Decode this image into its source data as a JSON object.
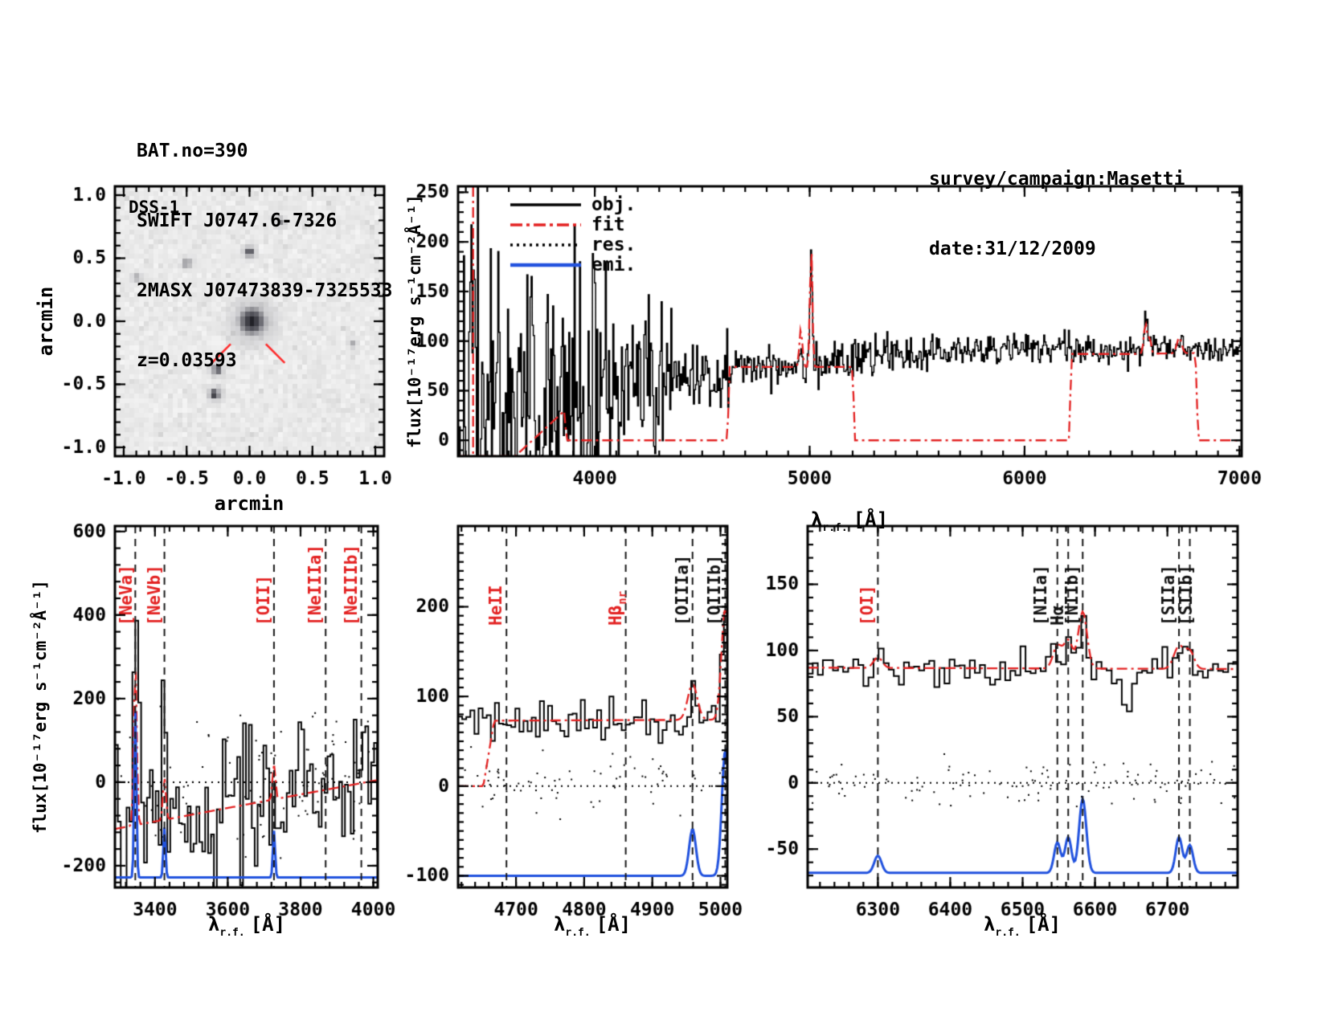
{
  "header_left": {
    "line1": "BAT.no=390",
    "line2": "SWIFT J0747.6-7326",
    "line3": "2MASX J07473839-7325533",
    "line4": "z=0.03593"
  },
  "header_right": {
    "line1": "survey/campaign:Masetti",
    "line2": "date:31/12/2009"
  },
  "labels": {
    "flux_axis": "flux[10⁻¹⁷erg s⁻¹cm⁻²Å⁻¹]",
    "arcmin": "arcmin",
    "wavelength_symbol": "λ",
    "wavelength_sub": "r.f.",
    "wavelength_unit": "[Å]",
    "dss_tag": "DSS-1"
  },
  "legend": {
    "items": [
      {
        "label": "obj.",
        "color": "#000000",
        "style": "solid"
      },
      {
        "label": "fit",
        "color": "#e32222",
        "style": "dashdot"
      },
      {
        "label": "res.",
        "color": "#000000",
        "style": "dotted"
      },
      {
        "label": "emi.",
        "color": "#2152de",
        "style": "solid"
      }
    ]
  },
  "colors": {
    "obj": "#000000",
    "fit": "#e32222",
    "emi": "#2152de",
    "marker_red": "#ff2a2a",
    "label_red": "#e32222",
    "label_black": "#111111",
    "frame": "#000000",
    "background": "#ffffff"
  },
  "chart_data": [
    {
      "id": "dss",
      "type": "image",
      "tag": "DSS-1",
      "xlabel": "arcmin",
      "ylabel": "arcmin",
      "xlim": [
        -1.07,
        1.07
      ],
      "ylim": [
        -1.07,
        1.07
      ],
      "xticks": [
        -1.0,
        -0.5,
        0.0,
        0.5,
        1.0
      ],
      "yticks": [
        -1.0,
        -0.5,
        0.0,
        0.5,
        1.0
      ],
      "x_minor": 0.1,
      "y_minor": 0.1,
      "tick_fixed": true,
      "sources": [
        {
          "x": 0.02,
          "y": 0.0,
          "r": 0.13,
          "darkness": 1.0,
          "note": "target-galaxy"
        },
        {
          "x": 0.0,
          "y": 0.55,
          "r": 0.05,
          "darkness": 0.8
        },
        {
          "x": -0.5,
          "y": 0.46,
          "r": 0.045,
          "darkness": 0.45
        },
        {
          "x": -0.26,
          "y": -0.38,
          "r": 0.045,
          "darkness": 0.85
        },
        {
          "x": -0.28,
          "y": -0.58,
          "r": 0.05,
          "darkness": 0.9
        },
        {
          "x": 0.25,
          "y": 0.79,
          "r": 0.045,
          "darkness": 0.4
        },
        {
          "x": 0.82,
          "y": -0.18,
          "r": 0.04,
          "darkness": 0.3
        },
        {
          "x": -0.9,
          "y": 0.35,
          "r": 0.05,
          "darkness": 0.25
        }
      ],
      "crosshair": [
        {
          "x1": -0.3,
          "y1": -0.33,
          "x2": -0.15,
          "y2": -0.18
        },
        {
          "x1": 0.13,
          "y1": -0.18,
          "x2": 0.28,
          "y2": -0.33
        }
      ]
    },
    {
      "id": "spectrum_full",
      "type": "line",
      "xlim": [
        3364,
        7010
      ],
      "ylim": [
        -16,
        256
      ],
      "xticks": [
        4000,
        5000,
        6000,
        7000
      ],
      "yticks": [
        0,
        50,
        100,
        150,
        200,
        250
      ],
      "x_minor": 100,
      "y_minor": 10,
      "bin": 5,
      "continuum": [
        [
          3364,
          45
        ],
        [
          3700,
          40
        ],
        [
          4050,
          45
        ],
        [
          4300,
          58
        ],
        [
          4600,
          70
        ],
        [
          4700,
          74
        ],
        [
          5000,
          77
        ],
        [
          5300,
          84
        ],
        [
          5700,
          90
        ],
        [
          6100,
          93
        ],
        [
          6450,
          90
        ],
        [
          7010,
          90
        ]
      ],
      "noise": [
        [
          3364,
          3470,
          115
        ],
        [
          3470,
          4060,
          72
        ],
        [
          4060,
          4360,
          42
        ],
        [
          4360,
          4650,
          16
        ],
        [
          4650,
          5250,
          11
        ],
        [
          5250,
          6250,
          8.5
        ],
        [
          6250,
          7010,
          7
        ]
      ],
      "obj_peaks": [
        {
          "x": 4959,
          "amp": 22,
          "sigma": 6
        },
        {
          "x": 5007,
          "amp": 127,
          "sigma": 5
        },
        {
          "x": 6563,
          "amp": 28,
          "sigma": 7
        },
        {
          "x": 6583,
          "amp": 18,
          "sigma": 6
        },
        {
          "x": 6720,
          "amp": 14,
          "sigma": 10
        }
      ],
      "fit_nodes": [
        [
          3630,
          -16
        ],
        [
          3860,
          30
        ],
        [
          3868,
          0
        ],
        [
          4618,
          0
        ],
        [
          4626,
          74
        ],
        [
          5200,
          74
        ],
        [
          5210,
          0
        ],
        [
          6208,
          0
        ],
        [
          6218,
          87
        ],
        [
          6500,
          87
        ],
        [
          6795,
          88
        ],
        [
          6808,
          0
        ],
        [
          7010,
          0
        ]
      ],
      "fit_peaks": [
        {
          "x": 4959,
          "amp": 38,
          "sigma": 7
        },
        {
          "x": 5007,
          "amp": 126,
          "sigma": 5.5
        },
        {
          "x": 6563,
          "amp": 30,
          "sigma": 8
        },
        {
          "x": 6583,
          "amp": 15,
          "sigma": 6
        },
        {
          "x": 6720,
          "amp": 16,
          "sigma": 11
        }
      ],
      "fit_vline": 3434,
      "legend": true
    },
    {
      "id": "spectrum_blue",
      "type": "line",
      "xlim": [
        3290,
        4012
      ],
      "ylim": [
        -252,
        613
      ],
      "xticks": [
        3400,
        3600,
        3800,
        4000
      ],
      "yticks": [
        -200,
        0,
        200,
        400,
        600
      ],
      "x_minor": 40,
      "y_minor": 40,
      "bin": 8,
      "continuum": [
        [
          3290,
          -90
        ],
        [
          4012,
          -5
        ]
      ],
      "noise": [
        [
          3290,
          4012,
          105
        ]
      ],
      "obj_peaks": [
        {
          "x": 3346,
          "amp": 640,
          "sigma": 3.5
        },
        {
          "x": 3426,
          "amp": 160,
          "sigma": 4
        }
      ],
      "fit_nodes": [
        [
          3290,
          -112
        ],
        [
          4012,
          5
        ]
      ],
      "fit_peaks": [
        {
          "x": 3346,
          "amp": 390,
          "sigma": 4
        },
        {
          "x": 3426,
          "amp": 100,
          "sigma": 4
        },
        {
          "x": 3727,
          "amp": 85,
          "sigma": 4
        }
      ],
      "zero_line": true,
      "residuals": {
        "n": 95,
        "amp": 85
      },
      "emission": {
        "baseline": -228,
        "peaks": [
          {
            "x": 3346,
            "amp": 400,
            "sigma": 3
          },
          {
            "x": 3426,
            "amp": 120,
            "sigma": 3
          },
          {
            "x": 3727,
            "amp": 112,
            "sigma": 3
          }
        ]
      },
      "markers": [
        {
          "x": 3346,
          "label": "[NeVa]",
          "color": "red",
          "dx": -4
        },
        {
          "x": 3426,
          "label": "[NeVb]",
          "color": "red"
        },
        {
          "x": 3727,
          "label": "[OII]",
          "color": "red"
        },
        {
          "x": 3869,
          "label": "[NeIIIa]",
          "color": "red"
        },
        {
          "x": 3967,
          "label": "[NeIIIb]",
          "color": "red"
        }
      ]
    },
    {
      "id": "spectrum_green",
      "type": "line",
      "xlim": [
        4615,
        5010
      ],
      "ylim": [
        -113,
        290
      ],
      "xticks": [
        4700,
        4800,
        4900,
        5000
      ],
      "yticks": [
        -100,
        0,
        100,
        200
      ],
      "x_minor": 20,
      "y_minor": 10,
      "bin": 6,
      "continuum": [
        [
          4615,
          72
        ],
        [
          5010,
          74
        ]
      ],
      "noise": [
        [
          4615,
          5010,
          11
        ]
      ],
      "obj_peaks": [
        {
          "x": 4959,
          "amp": 28,
          "sigma": 6
        },
        {
          "x": 5007,
          "amp": 130,
          "sigma": 5
        }
      ],
      "fit_nodes": [
        [
          4615,
          0
        ],
        [
          4652,
          0
        ],
        [
          4668,
          73
        ],
        [
          5010,
          74
        ]
      ],
      "fit_peaks": [
        {
          "x": 4959,
          "amp": 40,
          "sigma": 7
        },
        {
          "x": 5007,
          "amp": 125,
          "sigma": 5.5
        }
      ],
      "zero_line": true,
      "residuals": {
        "n": 75,
        "amp": 17
      },
      "emission": {
        "baseline": -100,
        "peaks": [
          {
            "x": 4959,
            "amp": 52,
            "sigma": 5
          },
          {
            "x": 5007,
            "amp": 140,
            "sigma": 5
          }
        ]
      },
      "markers": [
        {
          "x": 4686,
          "label": "HeII",
          "color": "red"
        },
        {
          "x": 4861,
          "label": "Hβ",
          "sub": "nr",
          "color": "red"
        },
        {
          "x": 4959,
          "label": "[OIIIa]",
          "color": "black"
        },
        {
          "x": 5007,
          "label": "[OIIIb]",
          "color": "black"
        }
      ]
    },
    {
      "id": "spectrum_red",
      "type": "line",
      "xlim": [
        6203,
        6797
      ],
      "ylim": [
        -79,
        194
      ],
      "xticks": [
        6300,
        6400,
        6500,
        6600,
        6700
      ],
      "yticks": [
        -50,
        0,
        50,
        100,
        150
      ],
      "x_minor": 20,
      "y_minor": 10,
      "bin": 7,
      "continuum": [
        [
          6203,
          84
        ],
        [
          6797,
          86
        ]
      ],
      "noise": [
        [
          6203,
          6797,
          7
        ]
      ],
      "obj_peaks": [
        {
          "x": 6300,
          "amp": 7,
          "sigma": 5
        },
        {
          "x": 6548,
          "amp": 12,
          "sigma": 5
        },
        {
          "x": 6563,
          "amp": 16,
          "sigma": 5
        },
        {
          "x": 6583,
          "amp": 42,
          "sigma": 5
        },
        {
          "x": 6645,
          "amp": -24,
          "sigma": 12
        },
        {
          "x": 6716,
          "amp": 17,
          "sigma": 6
        },
        {
          "x": 6731,
          "amp": 13,
          "sigma": 5
        }
      ],
      "fit_nodes": [
        [
          6203,
          87
        ],
        [
          6797,
          86
        ]
      ],
      "fit_peaks": [
        {
          "x": 6300,
          "amp": 8,
          "sigma": 6
        },
        {
          "x": 6548,
          "amp": 17,
          "sigma": 6
        },
        {
          "x": 6563,
          "amp": 21,
          "sigma": 6
        },
        {
          "x": 6583,
          "amp": 43,
          "sigma": 6
        },
        {
          "x": 6716,
          "amp": 17,
          "sigma": 7
        },
        {
          "x": 6731,
          "amp": 13,
          "sigma": 6
        }
      ],
      "zero_line": true,
      "residuals": {
        "n": 120,
        "amp": 9
      },
      "emission": {
        "baseline": -68,
        "peaks": [
          {
            "x": 6300,
            "amp": 13,
            "sigma": 5
          },
          {
            "x": 6548,
            "amp": 23,
            "sigma": 4.5
          },
          {
            "x": 6563,
            "amp": 27,
            "sigma": 4.5
          },
          {
            "x": 6583,
            "amp": 56,
            "sigma": 5
          },
          {
            "x": 6716,
            "amp": 27,
            "sigma": 4.5
          },
          {
            "x": 6731,
            "amp": 21,
            "sigma": 4.5
          }
        ]
      },
      "markers": [
        {
          "x": 6300,
          "label": "[OI]",
          "color": "red"
        },
        {
          "x": 6548,
          "label": "[NIIa]",
          "color": "black",
          "dx": -14
        },
        {
          "x": 6563,
          "label": "Hα",
          "color": "black",
          "dx": -6
        },
        {
          "x": 6583,
          "label": "[NIIb]",
          "color": "black",
          "dx": -6
        },
        {
          "x": 6716,
          "label": "[SIIa]",
          "color": "black",
          "dx": -6
        },
        {
          "x": 6731,
          "label": "[SIIb]",
          "color": "black",
          "dx": 2
        }
      ]
    }
  ]
}
